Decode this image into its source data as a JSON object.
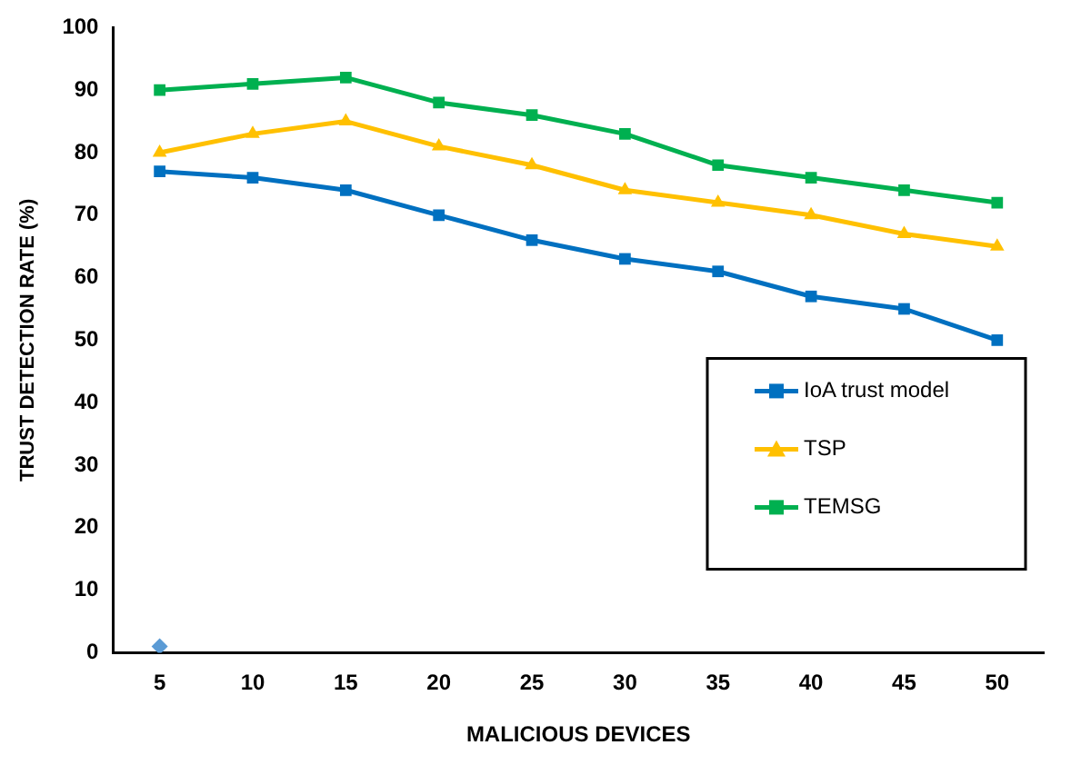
{
  "chart_data": {
    "type": "line",
    "xlabel": "MALICIOUS DEVICES",
    "ylabel": "TRUST DETECTION RATE (%)",
    "categories": [
      "5",
      "10",
      "15",
      "20",
      "25",
      "30",
      "35",
      "40",
      "45",
      "50"
    ],
    "series": [
      {
        "name": "IoA trust model",
        "color": "#0070c0",
        "marker": "square",
        "values": [
          77,
          76,
          74,
          70,
          66,
          63,
          61,
          57,
          55,
          50
        ]
      },
      {
        "name": "TSP",
        "color": "#ffc000",
        "marker": "triangle",
        "values": [
          80,
          83,
          85,
          81,
          78,
          74,
          72,
          70,
          67,
          65
        ]
      },
      {
        "name": "TEMSG",
        "color": "#00b050",
        "marker": "square",
        "values": [
          90,
          91,
          92,
          88,
          86,
          83,
          78,
          76,
          74,
          72
        ]
      },
      {
        "type": "scatter",
        "color": "#5b9bd5",
        "marker": "diamond",
        "x": [
          "5"
        ],
        "values": [
          1
        ]
      }
    ],
    "ylim": [
      0,
      100
    ],
    "yticks": [
      0,
      10,
      20,
      30,
      40,
      50,
      60,
      70,
      80,
      90,
      100
    ],
    "grid": false,
    "legend": "right",
    "line_style": "solid"
  }
}
